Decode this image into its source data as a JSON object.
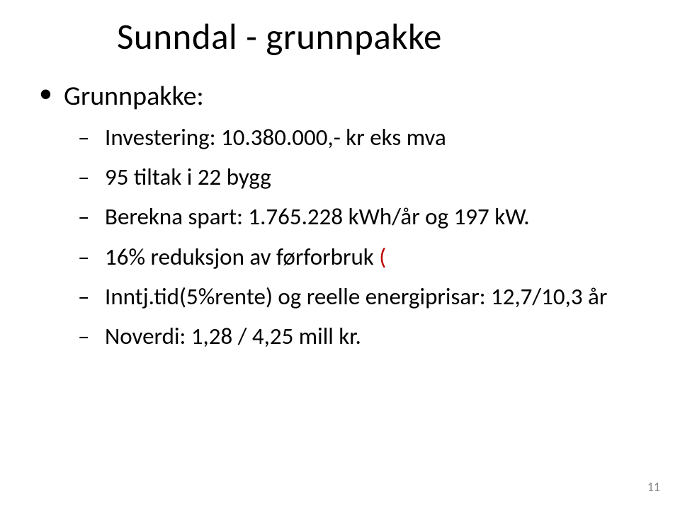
{
  "title": "Sunndal  - grunnpakke",
  "bullets": {
    "l1_1": "Grunnpakke:",
    "l2_1": "Investering: 10.380.000,- kr eks mva",
    "l2_2": " 95 tiltak i 22 bygg",
    "l2_3": "Berekna spart: 1.765.228 kWh/år og 197 kW.",
    "l2_4_a": "16% reduksjon av førforbruk",
    "l2_4_b": " (",
    "l2_5": "Inntj.tid(5%rente) og reelle energiprisar: 12,7/10,3 år",
    "l2_6": "Noverdi: 1,28 / 4,25  mill kr."
  },
  "pagenum": "11",
  "colors": {
    "text": "#000000",
    "accent_red": "#c00000",
    "pagenum": "#8a8a8a",
    "background": "#ffffff"
  }
}
